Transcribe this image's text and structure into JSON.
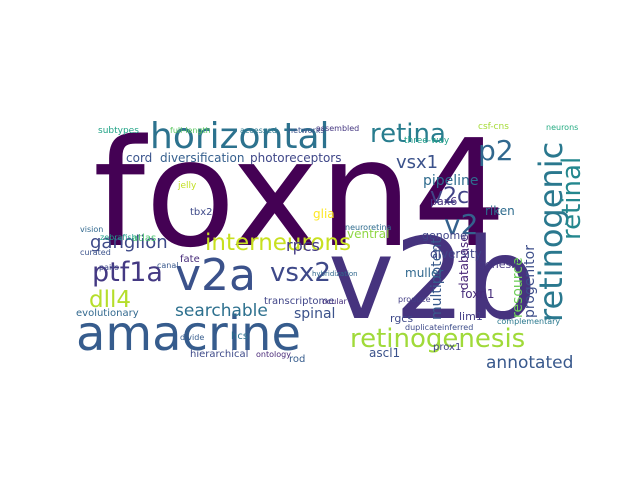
{
  "chart_data": {
    "type": "wordcloud",
    "words": [
      "foxn4",
      "v2b",
      "amacrine",
      "horizontal",
      "v2a",
      "retina",
      "p2",
      "retinogenic",
      "retinal",
      "interneurons",
      "ganglion",
      "ptf1a",
      "dll4",
      "v2c",
      "v2",
      "vsx1",
      "vsx2",
      "rpcs",
      "searchable",
      "retinogenesis",
      "annotated",
      "cord",
      "diversification",
      "photoreceptors",
      "pipeline",
      "glia",
      "ventral",
      "spinal",
      "multipotent",
      "progenitor",
      "resource",
      "diversity",
      "database",
      "muller",
      "foxn1",
      "lim1",
      "pax6",
      "riken",
      "genome",
      "genesis",
      "three-way",
      "subtypes",
      "networks",
      "assembled",
      "full-length",
      "accessed",
      "hierarchical",
      "ontology",
      "rod",
      "evolutionary",
      "ascl1",
      "prox1",
      "rgcs",
      "hcs",
      "fate",
      "atlas",
      "transcriptome",
      "csf-cns",
      "neurons",
      "jelly",
      "tbx2",
      "zebrafish",
      "curated",
      "vision",
      "pairs",
      "complementary",
      "duplicate",
      "inferred",
      "produce",
      "ocular",
      "canal",
      "divide",
      "neuroretina",
      "hybridization"
    ]
  }
}
